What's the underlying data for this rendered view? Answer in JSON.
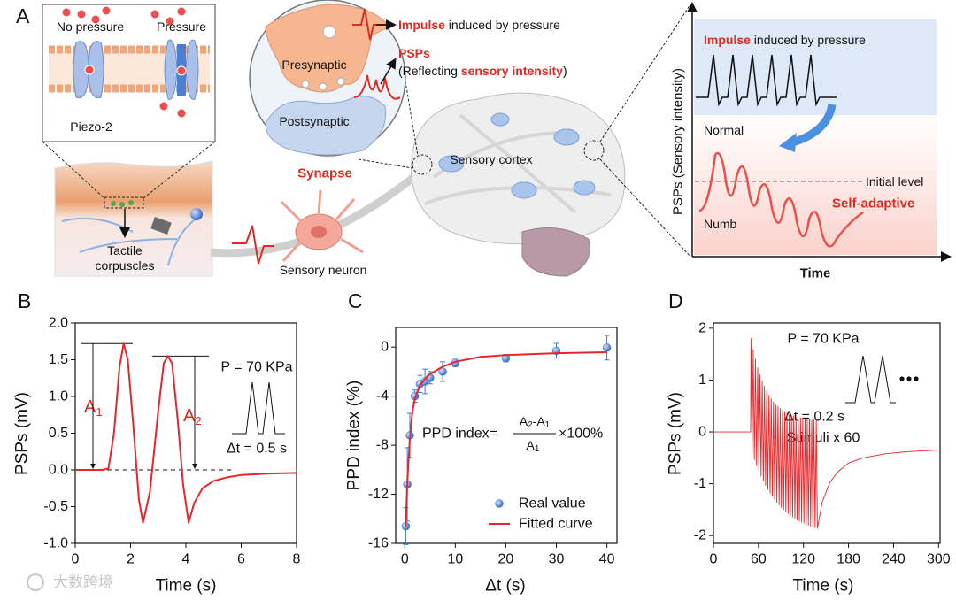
{
  "panel_a": {
    "label": "A",
    "no_pressure": "No pressure",
    "pressure": "Pressure",
    "piezo": "Piezo-2",
    "tactile": [
      "Tactile",
      "corpuscles"
    ],
    "sensory_neuron": "Sensory neuron",
    "synapse": "Synapse",
    "presynaptic": "Presynaptic",
    "postsynaptic": "Postsynaptic",
    "impulse_caption": {
      "highlight": "Impulse",
      "rest": " induced by pressure"
    },
    "psps_caption": {
      "title": "PSPs",
      "open": "(Reflecting ",
      "highlight": "sensory intensity",
      "close": ")"
    },
    "sensory_cortex": "Sensory cortex",
    "inset": {
      "impulse_caption": {
        "highlight": "Impulse",
        "rest": " induced by pressure"
      },
      "normal": "Normal",
      "initial_level": "Initial level",
      "numb": "Numb",
      "self_adaptive": "Self-adaptive",
      "ylabel": "PSPs (Sensory intensity)",
      "xlabel": "Time"
    }
  },
  "chart_data": [
    {
      "panel_label": "B",
      "type": "line",
      "xlabel": "Time (s)",
      "ylabel": "PSPs (mV)",
      "xlim": [
        0,
        8
      ],
      "xticks": [
        0,
        2,
        4,
        6,
        8
      ],
      "ylim": [
        -1,
        2
      ],
      "yticks": [
        {
          "value": -1,
          "label": "-1.0"
        },
        {
          "value": -0.5,
          "label": "-0.5"
        },
        {
          "value": 0,
          "label": "0.0"
        },
        {
          "value": 0.5,
          "label": "0.5"
        },
        {
          "value": 1,
          "label": "1.0"
        },
        {
          "value": 1.5,
          "label": "1.5"
        },
        {
          "value": 2,
          "label": "2.0"
        }
      ],
      "x": [
        0,
        0.5,
        1.0,
        1.2,
        1.4,
        1.6,
        1.75,
        1.9,
        2.1,
        2.3,
        2.45,
        2.7,
        3.0,
        3.2,
        3.35,
        3.5,
        3.7,
        3.9,
        4.1,
        4.3,
        4.6,
        5,
        5.5,
        6,
        7,
        8
      ],
      "series": [
        {
          "color": "#e8262a",
          "values": [
            0,
            0,
            0,
            0.02,
            0.5,
            1.4,
            1.72,
            1.5,
            0.6,
            -0.4,
            -0.72,
            -0.3,
            0.8,
            1.45,
            1.55,
            1.45,
            0.7,
            -0.2,
            -0.72,
            -0.45,
            -0.25,
            -0.15,
            -0.1,
            -0.07,
            -0.05,
            -0.04
          ]
        }
      ],
      "annotations": {
        "a1": {
          "text": "A",
          "sub": "1"
        },
        "a2": {
          "text": "A",
          "sub": "2"
        },
        "pressure": "P = 70 KPa",
        "interval": "Δt = 0.5 s"
      }
    },
    {
      "panel_label": "C",
      "type": "scatter",
      "xlabel": "Δt (s)",
      "ylabel": "PPD index (%)",
      "xlim": [
        -1.8,
        42
      ],
      "xticks": [
        0,
        10,
        20,
        30,
        40
      ],
      "ylim": [
        -16,
        1.6
      ],
      "yticks": [
        -16,
        -12,
        -8,
        -4,
        0
      ],
      "legend": "lower right",
      "series": [
        {
          "name": "Real value",
          "color": "#3f7ad8",
          "x": [
            0.2,
            0.5,
            1,
            2,
            3,
            4,
            5,
            7.5,
            10,
            20,
            30,
            40
          ],
          "values": [
            -14.6,
            -11.2,
            -7.2,
            -4,
            -3,
            -2.8,
            -2.5,
            -2,
            -1.3,
            -0.9,
            -0.3,
            -0.05
          ],
          "errors": [
            1.5,
            3,
            1.8,
            0.5,
            0.7,
            1,
            0.5,
            0.8,
            0.3,
            0.3,
            0.6,
            1
          ]
        },
        {
          "name": "Fitted curve",
          "type": "line",
          "color": "#e8262a",
          "x": [
            0.2,
            0.5,
            1,
            1.5,
            2,
            3,
            4,
            5,
            7.5,
            10,
            15,
            20,
            30,
            40
          ],
          "values": [
            -14.6,
            -11,
            -7.5,
            -5.3,
            -4.2,
            -3.1,
            -2.6,
            -2.2,
            -1.6,
            -1.2,
            -0.8,
            -0.65,
            -0.5,
            -0.42
          ]
        }
      ],
      "formula": {
        "lhs": "PPD index=",
        "numerator": [
          {
            "text": "A",
            "sub": "2"
          },
          {
            "text": "-A",
            "sub": "1"
          }
        ],
        "denominator": {
          "text": "A",
          "sub": "1"
        },
        "rhs": "×100%"
      }
    },
    {
      "panel_label": "D",
      "type": "line",
      "xlabel": "Time (s)",
      "ylabel": "PSPs (mV)",
      "xlim": [
        0,
        302
      ],
      "xticks": [
        0,
        60,
        120,
        180,
        240,
        300
      ],
      "ylim": [
        -2.15,
        2.1
      ],
      "yticks": [
        -2,
        -1,
        0,
        1,
        2
      ],
      "x": [
        0,
        49.5,
        50,
        51.5,
        53,
        54.5,
        56,
        57.5,
        59,
        60.5,
        62,
        63.5,
        65,
        66.5,
        68,
        69.5,
        71,
        72.5,
        74,
        75.5,
        77,
        78.5,
        80,
        81.5,
        83,
        84.5,
        86,
        87.5,
        89,
        90.5,
        92,
        93.5,
        95,
        96.5,
        98,
        99.5,
        101,
        102.5,
        104,
        105.5,
        107,
        108.5,
        110,
        111.5,
        113,
        114.5,
        116,
        117.5,
        119,
        120.5,
        122,
        123.5,
        125,
        126.5,
        128,
        129.5,
        131,
        132.5,
        134,
        135.5,
        137,
        138.5,
        145,
        155,
        165,
        180,
        200,
        230,
        260,
        300
      ],
      "series": [
        {
          "color": "#e8262a",
          "values": [
            0,
            0,
            1.8,
            -0.4,
            1.59,
            -0.53,
            1.4,
            -0.65,
            1.24,
            -0.75,
            1.1,
            -0.85,
            0.98,
            -0.95,
            0.88,
            -1.03,
            0.79,
            -1.11,
            0.71,
            -1.18,
            0.64,
            -1.24,
            0.58,
            -1.3,
            0.53,
            -1.36,
            0.49,
            -1.41,
            0.45,
            -1.46,
            0.42,
            -1.5,
            0.39,
            -1.54,
            0.36,
            -1.58,
            0.34,
            -1.61,
            0.32,
            -1.64,
            0.31,
            -1.67,
            0.29,
            -1.7,
            0.28,
            -1.72,
            0.27,
            -1.74,
            0.26,
            -1.76,
            0.25,
            -1.78,
            0.24,
            -1.8,
            0.24,
            -1.82,
            0.23,
            -1.83,
            0.23,
            -1.84,
            0.23,
            -1.86,
            -1.35,
            -0.98,
            -0.78,
            -0.6,
            -0.5,
            -0.42,
            -0.38,
            -0.35
          ]
        }
      ],
      "annotations": {
        "pressure": "P = 70 KPa",
        "interval": "Δt = 0.2 s",
        "stimuli": "Stimuli x 60"
      }
    }
  ],
  "watermark": "大数跨境"
}
